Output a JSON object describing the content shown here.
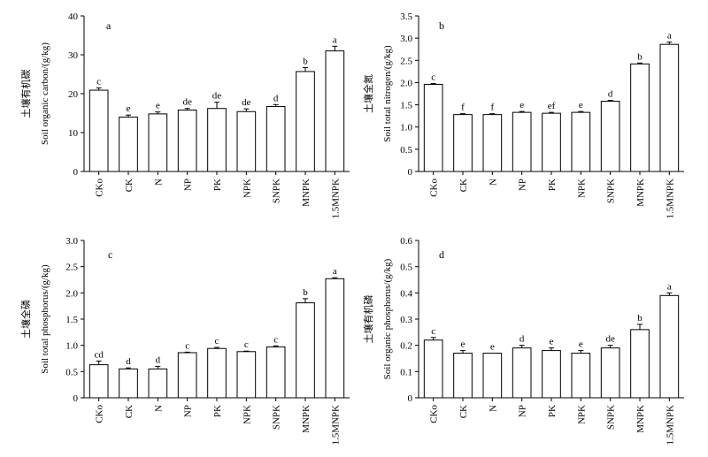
{
  "chart_data": [
    {
      "type": "bar",
      "panel_label": "a",
      "ylabel_zh": "土壤有机碳",
      "ylabel": "Soil organic carbon/(g/kg)",
      "ylim": [
        0,
        40
      ],
      "yticks": [
        0,
        10,
        20,
        30,
        40
      ],
      "categories": [
        "CKo",
        "CK",
        "N",
        "NP",
        "PK",
        "NPK",
        "SNPK",
        "MNPK",
        "1.5MNPK"
      ],
      "values": [
        20.9,
        14.0,
        14.8,
        15.8,
        16.2,
        15.4,
        16.7,
        25.7,
        31.0
      ],
      "errors": [
        0.6,
        0.5,
        0.5,
        0.4,
        1.6,
        0.7,
        0.5,
        1.0,
        1.2
      ],
      "significance": [
        "c",
        "e",
        "e",
        "de",
        "de",
        "de",
        "d",
        "b",
        "a"
      ]
    },
    {
      "type": "bar",
      "panel_label": "b",
      "ylabel_zh": "土壤全氮",
      "ylabel": "Soil total nitrogen/(g/kg)",
      "ylim": [
        0,
        3.5
      ],
      "yticks": [
        "0",
        "0.5",
        "1.0",
        "1.5",
        "2.0",
        "2.5",
        "3.0",
        "3.5"
      ],
      "categories": [
        "CKo",
        "CK",
        "N",
        "NP",
        "PK",
        "NPK",
        "SNPK",
        "MNPK",
        "1.5MNPK"
      ],
      "values": [
        1.96,
        1.28,
        1.28,
        1.33,
        1.31,
        1.33,
        1.58,
        2.42,
        2.86
      ],
      "errors": [
        0.02,
        0.02,
        0.02,
        0.02,
        0.02,
        0.02,
        0.02,
        0.02,
        0.05
      ],
      "significance": [
        "c",
        "f",
        "f",
        "e",
        "ef",
        "e",
        "d",
        "b",
        "a"
      ]
    },
    {
      "type": "bar",
      "panel_label": "c",
      "ylabel_zh": "土壤全磷",
      "ylabel": "Soil total phosphorus/(g/kg)",
      "ylim": [
        0,
        3.0
      ],
      "yticks": [
        "0",
        "0.5",
        "1.0",
        "1.5",
        "2.0",
        "2.5",
        "3.0"
      ],
      "categories": [
        "CKo",
        "CK",
        "N",
        "NP",
        "PK",
        "NPK",
        "SNPK",
        "MNPK",
        "1.5MNPK"
      ],
      "values": [
        0.63,
        0.55,
        0.55,
        0.86,
        0.94,
        0.88,
        0.97,
        1.81,
        2.27
      ],
      "errors": [
        0.07,
        0.02,
        0.05,
        0.01,
        0.02,
        0.01,
        0.02,
        0.08,
        0.02
      ],
      "significance": [
        "cd",
        "d",
        "d",
        "c",
        "c",
        "c",
        "c",
        "b",
        "a"
      ]
    },
    {
      "type": "bar",
      "panel_label": "d",
      "ylabel_zh": "土壤有机磷",
      "ylabel": "Soil organic phosphorus/(g/kg)",
      "ylim": [
        0,
        0.6
      ],
      "yticks": [
        "0",
        "0.1",
        "0.2",
        "0.3",
        "0.4",
        "0.5",
        "0.6"
      ],
      "categories": [
        "CKo",
        "CK",
        "N",
        "NP",
        "PK",
        "NPK",
        "SNPK",
        "MNPK",
        "1.5MNPK"
      ],
      "values": [
        0.22,
        0.17,
        0.17,
        0.19,
        0.18,
        0.17,
        0.19,
        0.26,
        0.39
      ],
      "errors": [
        0.01,
        0.01,
        0.0,
        0.01,
        0.01,
        0.01,
        0.01,
        0.02,
        0.01
      ],
      "significance": [
        "c",
        "e",
        "e",
        "d",
        "e",
        "e",
        "de",
        "b",
        "a"
      ]
    }
  ]
}
